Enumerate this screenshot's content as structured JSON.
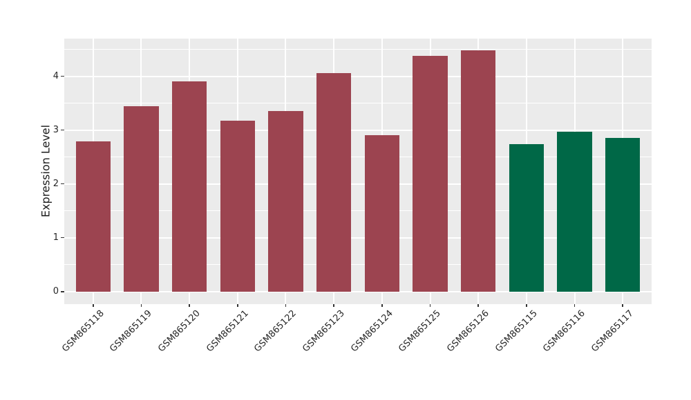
{
  "chart_data": {
    "type": "bar",
    "title": "",
    "xlabel": "",
    "ylabel": "Expression Level",
    "categories": [
      "GSM865118",
      "GSM865119",
      "GSM865120",
      "GSM865121",
      "GSM865122",
      "GSM865123",
      "GSM865124",
      "GSM865125",
      "GSM865126",
      "GSM865115",
      "GSM865116",
      "GSM865117"
    ],
    "values": [
      2.79,
      3.45,
      3.9,
      3.17,
      3.36,
      4.06,
      2.91,
      4.38,
      4.48,
      2.74,
      2.97,
      2.85
    ],
    "bar_groups": [
      "maroon",
      "maroon",
      "maroon",
      "maroon",
      "maroon",
      "maroon",
      "maroon",
      "maroon",
      "maroon",
      "green",
      "green",
      "green"
    ],
    "group_colors": {
      "maroon": "#9C4450",
      "green": "#006847"
    },
    "yticks": [
      "0",
      "1",
      "2",
      "3",
      "4"
    ],
    "minor_yticks": [
      0.5,
      1.5,
      2.5,
      3.5,
      4.5
    ],
    "ylim": [
      -0.23,
      4.7
    ],
    "grid": true,
    "legend": "none",
    "panel_bg": "#EBEBEB",
    "grid_color": "#FFFFFF",
    "axis_text_color": "#262626",
    "axis_title_color": "#1A1A1A",
    "tick_mark_color": "#333333",
    "bar_width_frac": 0.72,
    "x_expand": 0.6
  }
}
